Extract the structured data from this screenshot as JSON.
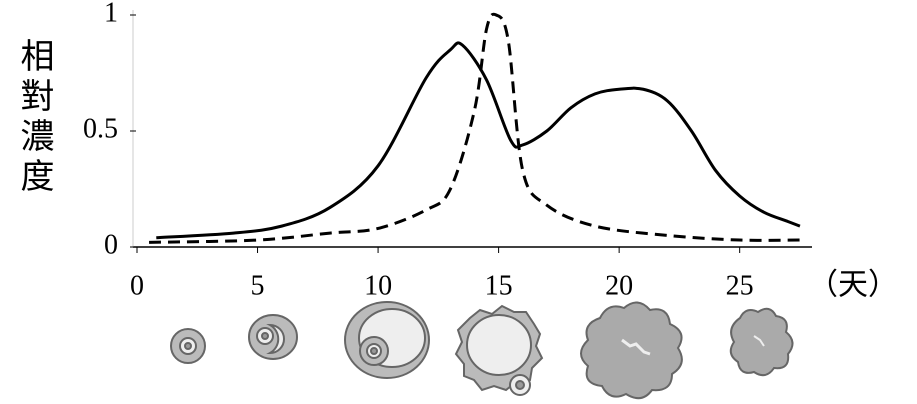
{
  "chart_data": {
    "type": "line",
    "y_label": "相對濃度",
    "x_label": "（天）",
    "xlim": [
      0,
      28
    ],
    "xticks": [
      0,
      5,
      10,
      15,
      20,
      25
    ],
    "ylim": [
      0,
      1
    ],
    "yticks": [
      0,
      0.5,
      1
    ],
    "series": [
      {
        "color": "#000000",
        "style": "solid",
        "x": [
          0.8,
          4,
          6,
          8,
          10,
          12,
          13,
          13.5,
          14.5,
          15.5,
          16,
          17,
          18,
          19,
          20,
          21,
          22,
          23,
          24,
          25,
          26,
          27,
          27.5
        ],
        "values": [
          0.04,
          0.06,
          0.09,
          0.17,
          0.35,
          0.73,
          0.85,
          0.87,
          0.72,
          0.46,
          0.44,
          0.5,
          0.6,
          0.66,
          0.68,
          0.68,
          0.63,
          0.5,
          0.33,
          0.22,
          0.15,
          0.11,
          0.09
        ]
      },
      {
        "color": "#000000",
        "style": "dashed",
        "x": [
          0.5,
          5,
          8,
          10,
          12,
          13,
          14,
          14.5,
          14.9,
          15.4,
          16,
          17,
          19,
          22,
          25,
          27.5
        ],
        "values": [
          0.02,
          0.03,
          0.06,
          0.08,
          0.16,
          0.25,
          0.59,
          0.94,
          1.0,
          0.89,
          0.33,
          0.18,
          0.09,
          0.05,
          0.03,
          0.03
        ]
      }
    ]
  }
}
